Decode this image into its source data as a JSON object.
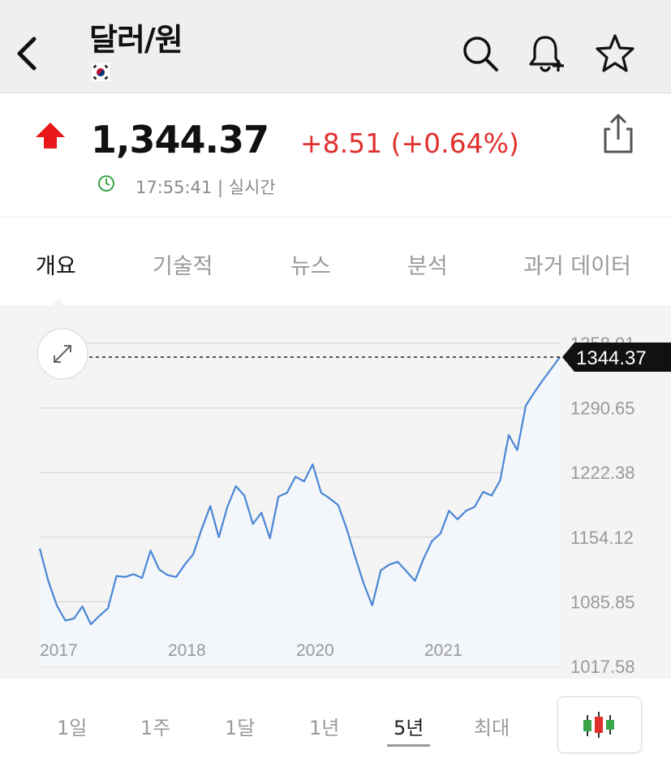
{
  "header": {
    "title": "달러/원",
    "back_icon": "chevron-left-icon",
    "icons": [
      "search-icon",
      "bell-plus-icon",
      "star-icon"
    ]
  },
  "quote": {
    "price": "1,344.37",
    "change": "+8.51 (+0.64%)",
    "direction": "up",
    "time_label": "17:55:41 | 실시간",
    "up_color": "#e0302d"
  },
  "tabs": [
    {
      "label": "개요",
      "active": true
    },
    {
      "label": "기술적",
      "active": false
    },
    {
      "label": "뉴스",
      "active": false
    },
    {
      "label": "분석",
      "active": false
    },
    {
      "label": "과거 데이터",
      "active": false
    }
  ],
  "chart_data": {
    "type": "area",
    "x_tick_labels": [
      "2017",
      "2018",
      "2020",
      "2021"
    ],
    "y_tick_labels": [
      "1358.91",
      "1290.65",
      "1222.38",
      "1154.12",
      "1085.85",
      "1017.58"
    ],
    "ylim": [
      1017.58,
      1358.91
    ],
    "last_value_label": "1344.37",
    "last_value": 1344.37,
    "line_color": "#4a86d4",
    "fill_color": "#f3f6fb",
    "values": [
      1142,
      1108,
      1082,
      1066,
      1068,
      1081,
      1062,
      1071,
      1079,
      1113,
      1112,
      1115,
      1111,
      1140,
      1120,
      1114,
      1112,
      1125,
      1136,
      1163,
      1187,
      1154,
      1186,
      1208,
      1198,
      1168,
      1180,
      1153,
      1197,
      1201,
      1218,
      1213,
      1231,
      1201,
      1195,
      1188,
      1163,
      1133,
      1105,
      1082,
      1119,
      1125,
      1128,
      1118,
      1108,
      1131,
      1150,
      1158,
      1182,
      1173,
      1182,
      1186,
      1202,
      1198,
      1214,
      1262,
      1246,
      1293,
      1307,
      1320,
      1332,
      1344.37
    ]
  },
  "ranges": [
    {
      "label": "1일",
      "active": false
    },
    {
      "label": "1주",
      "active": false
    },
    {
      "label": "1달",
      "active": false
    },
    {
      "label": "1년",
      "active": false
    },
    {
      "label": "5년",
      "active": true
    },
    {
      "label": "최대",
      "active": false
    }
  ],
  "candle_icon": "candlestick-icon"
}
